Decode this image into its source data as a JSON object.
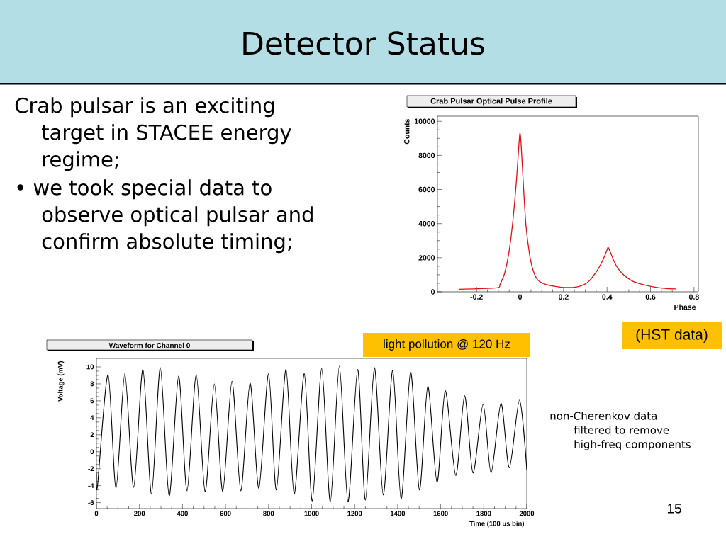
{
  "chart_data": [
    {
      "type": "other",
      "title": "Detector Status",
      "annotations": [
        "Crab pulsar is an exciting target in STACEE energy regime;",
        "• we took special data to observe optical pulsar and confirm absolute timing;",
        "15"
      ]
    },
    {
      "type": "line",
      "title": "Crab Pulsar Optical Pulse Profile",
      "xlabel": "Phase",
      "ylabel": "Counts",
      "annotations": [
        "(HST data)"
      ],
      "x": [
        -0.28,
        -0.2,
        -0.103,
        -0.092,
        -0.07,
        -0.049,
        -0.032,
        -0.016,
        -0.005,
        0,
        0.005,
        0.016,
        0.027,
        0.043,
        0.059,
        0.081,
        0.114,
        0.157,
        0.211,
        0.265,
        0.297,
        0.319,
        0.341,
        0.362,
        0.384,
        0.4,
        0.405,
        0.416,
        0.432,
        0.449,
        0.476,
        0.514,
        0.557,
        0.611,
        0.665,
        0.714
      ],
      "series": [
        {
          "color": "#e01010",
          "values": [
            150,
            180,
            240,
            440,
            1130,
            2500,
            4300,
            6650,
            8700,
            9300,
            8600,
            6100,
            3900,
            2250,
            1300,
            700,
            450,
            330,
            250,
            300,
            440,
            650,
            1000,
            1400,
            1950,
            2450,
            2600,
            2300,
            1800,
            1400,
            1000,
            650,
            450,
            300,
            200,
            170
          ]
        }
      ],
      "xlim": [
        -0.38,
        0.82
      ],
      "xticks": [
        -0.2,
        0,
        0.2,
        0.4,
        0.6,
        0.8
      ],
      "ylim": [
        0,
        10300
      ],
      "yticks": [
        0,
        2000,
        4000,
        6000,
        8000,
        10000
      ]
    },
    {
      "type": "line",
      "title": "Waveform for Channel 0",
      "xlabel": "Time (100 us bin)",
      "ylabel": "Voltage (mV)",
      "annotations": [
        "light pollution @ 120 Hz",
        "non-Cherenkov data filtered to remove high-freq components"
      ],
      "x": [
        0,
        5,
        54,
        91,
        132,
        173,
        216,
        256,
        297,
        338,
        382,
        421,
        464,
        505,
        548,
        587,
        630,
        671,
        714,
        755,
        800,
        836,
        881,
        919,
        966,
        1003,
        1047,
        1087,
        1129,
        1169,
        1214,
        1250,
        1292,
        1333,
        1377,
        1416,
        1460,
        1501,
        1540,
        1583,
        1621,
        1670,
        1711,
        1750,
        1797,
        1834,
        1880,
        1919,
        1966,
        2000
      ],
      "series": [
        {
          "color": "#000000",
          "values": [
            -2.6,
            -4.0,
            9.1,
            -4.3,
            9.2,
            -4.2,
            9.7,
            -5.0,
            9.9,
            -5.2,
            8.9,
            -4.6,
            9.1,
            -4.7,
            8.0,
            -4.7,
            8.3,
            -4.6,
            8.1,
            -4.3,
            9.2,
            -4.5,
            9.7,
            -5.0,
            9.2,
            -5.8,
            9.8,
            -5.9,
            10.1,
            -5.9,
            9.7,
            -5.7,
            9.9,
            -5.1,
            9.6,
            -5.6,
            9.4,
            -4.5,
            7.7,
            -3.6,
            7.2,
            -2.8,
            6.6,
            -2.5,
            5.6,
            -2.5,
            5.7,
            -1.9,
            6.1,
            -2.1
          ]
        }
      ],
      "xlim": [
        0,
        2000
      ],
      "xticks": [
        0,
        200,
        400,
        600,
        800,
        1000,
        1200,
        1400,
        1600,
        1800,
        2000
      ],
      "ylim": [
        -6.7,
        11
      ],
      "yticks": [
        -6,
        -4,
        -2,
        0,
        2,
        4,
        6,
        8,
        10
      ]
    }
  ]
}
